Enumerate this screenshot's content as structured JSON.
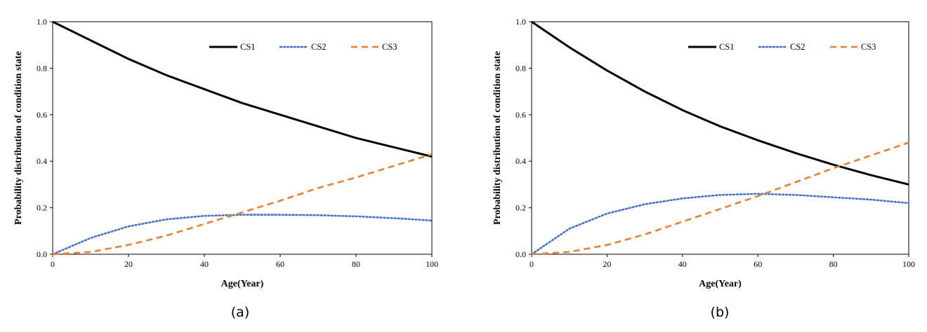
{
  "chart_data": [
    {
      "type": "line",
      "caption": "(a)",
      "xlabel": "Age(Year)",
      "ylabel": "Probability distribution of condition state",
      "xlim": [
        0,
        100
      ],
      "ylim": [
        0,
        1.0
      ],
      "xticks": [
        "0",
        "20",
        "40",
        "60",
        "80",
        "100"
      ],
      "yticks": [
        "0.0",
        "0.2",
        "0.4",
        "0.6",
        "0.8",
        "1.0"
      ],
      "legend_position": "top-right",
      "x": [
        0,
        10,
        20,
        30,
        40,
        50,
        60,
        70,
        80,
        90,
        100
      ],
      "series": [
        {
          "name": "CS1",
          "style": "solid",
          "color": "#000000",
          "values": [
            1.0,
            0.92,
            0.84,
            0.77,
            0.71,
            0.65,
            0.6,
            0.55,
            0.5,
            0.46,
            0.42
          ]
        },
        {
          "name": "CS2",
          "style": "dotted",
          "color": "#4472C4",
          "values": [
            0.0,
            0.07,
            0.12,
            0.15,
            0.165,
            0.17,
            0.17,
            0.168,
            0.163,
            0.155,
            0.145
          ]
        },
        {
          "name": "CS3",
          "style": "dashed",
          "color": "#ED7D31",
          "values": [
            0.0,
            0.01,
            0.04,
            0.08,
            0.13,
            0.18,
            0.23,
            0.285,
            0.33,
            0.38,
            0.43
          ]
        }
      ]
    },
    {
      "type": "line",
      "caption": "(b)",
      "xlabel": "Age(Year)",
      "ylabel": "Probability distribution of condition state",
      "xlim": [
        0,
        100
      ],
      "ylim": [
        0,
        1.0
      ],
      "xticks": [
        "0",
        "20",
        "40",
        "60",
        "80",
        "100"
      ],
      "yticks": [
        "0.0",
        "0.2",
        "0.4",
        "0.6",
        "0.8",
        "1.0"
      ],
      "legend_position": "top-right",
      "x": [
        0,
        10,
        20,
        30,
        40,
        50,
        60,
        70,
        80,
        90,
        100
      ],
      "series": [
        {
          "name": "CS1",
          "style": "solid",
          "color": "#000000",
          "values": [
            1.0,
            0.89,
            0.79,
            0.7,
            0.62,
            0.55,
            0.49,
            0.435,
            0.385,
            0.34,
            0.3
          ]
        },
        {
          "name": "CS2",
          "style": "dotted",
          "color": "#4472C4",
          "values": [
            0.0,
            0.11,
            0.175,
            0.215,
            0.24,
            0.255,
            0.26,
            0.255,
            0.245,
            0.235,
            0.22
          ]
        },
        {
          "name": "CS3",
          "style": "dashed",
          "color": "#ED7D31",
          "values": [
            0.0,
            0.01,
            0.04,
            0.085,
            0.14,
            0.195,
            0.25,
            0.31,
            0.37,
            0.425,
            0.48
          ]
        }
      ]
    }
  ]
}
